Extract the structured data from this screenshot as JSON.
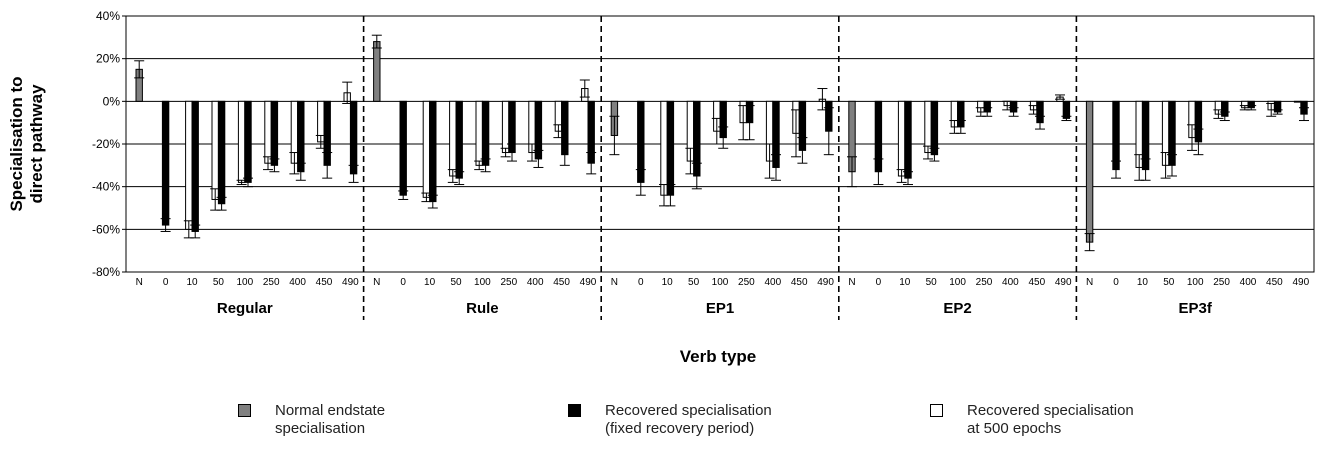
{
  "chart_data": {
    "type": "bar",
    "xlabel": "Verb type",
    "ylabel": "Specialisation to direct pathway",
    "ylim": [
      -80,
      40
    ],
    "yticks": [
      "40%",
      "20%",
      "0%",
      "-20%",
      "-40%",
      "-60%",
      "-80%"
    ],
    "ytick_values": [
      40,
      20,
      0,
      -20,
      -40,
      -60,
      -80
    ],
    "grid": true,
    "legend_position": "bottom",
    "categories": [
      "N",
      "0",
      "10",
      "50",
      "100",
      "250",
      "400",
      "450",
      "490"
    ],
    "series": [
      {
        "name": "Normal endstate specialisation",
        "color": "#808080"
      },
      {
        "name": "Recovered specialisation (fixed recovery period)",
        "color": "#000000"
      },
      {
        "name": "Recovered specialisation at 500 epochs",
        "color": "#ffffff"
      }
    ],
    "groups": [
      {
        "name": "Regular",
        "bars": [
          {
            "cat": "N",
            "series": 0,
            "value": 15,
            "err": 4
          },
          {
            "cat": "0",
            "series": 1,
            "value": -58,
            "err": 3
          },
          {
            "cat": "10",
            "series": 2,
            "value": -60,
            "err": 4
          },
          {
            "cat": "10",
            "series": 1,
            "value": -61,
            "err": 3
          },
          {
            "cat": "50",
            "series": 2,
            "value": -46,
            "err": 5
          },
          {
            "cat": "50",
            "series": 1,
            "value": -48,
            "err": 3
          },
          {
            "cat": "100",
            "series": 2,
            "value": -38,
            "err": 1
          },
          {
            "cat": "100",
            "series": 1,
            "value": -38,
            "err": 2
          },
          {
            "cat": "250",
            "series": 2,
            "value": -29,
            "err": 3
          },
          {
            "cat": "250",
            "series": 1,
            "value": -30,
            "err": 3
          },
          {
            "cat": "400",
            "series": 2,
            "value": -29,
            "err": 5
          },
          {
            "cat": "400",
            "series": 1,
            "value": -33,
            "err": 4
          },
          {
            "cat": "450",
            "series": 2,
            "value": -19,
            "err": 3
          },
          {
            "cat": "450",
            "series": 1,
            "value": -30,
            "err": 6
          },
          {
            "cat": "490",
            "series": 2,
            "value": 4,
            "err": 5
          },
          {
            "cat": "490",
            "series": 1,
            "value": -34,
            "err": 4
          }
        ]
      },
      {
        "name": "Rule",
        "bars": [
          {
            "cat": "N",
            "series": 0,
            "value": 28,
            "err": 3
          },
          {
            "cat": "0",
            "series": 1,
            "value": -44,
            "err": 2
          },
          {
            "cat": "10",
            "series": 2,
            "value": -45,
            "err": 2
          },
          {
            "cat": "10",
            "series": 1,
            "value": -47,
            "err": 3
          },
          {
            "cat": "50",
            "series": 2,
            "value": -35,
            "err": 3
          },
          {
            "cat": "50",
            "series": 1,
            "value": -36,
            "err": 3
          },
          {
            "cat": "100",
            "series": 2,
            "value": -30,
            "err": 2
          },
          {
            "cat": "100",
            "series": 1,
            "value": -30,
            "err": 3
          },
          {
            "cat": "250",
            "series": 2,
            "value": -24,
            "err": 2
          },
          {
            "cat": "250",
            "series": 1,
            "value": -24,
            "err": 4
          },
          {
            "cat": "400",
            "series": 2,
            "value": -24,
            "err": 4
          },
          {
            "cat": "400",
            "series": 1,
            "value": -27,
            "err": 4
          },
          {
            "cat": "450",
            "series": 2,
            "value": -14,
            "err": 3
          },
          {
            "cat": "450",
            "series": 1,
            "value": -25,
            "err": 5
          },
          {
            "cat": "490",
            "series": 2,
            "value": 6,
            "err": 4
          },
          {
            "cat": "490",
            "series": 1,
            "value": -29,
            "err": 5
          }
        ]
      },
      {
        "name": "EP1",
        "bars": [
          {
            "cat": "N",
            "series": 0,
            "value": -16,
            "err": 9
          },
          {
            "cat": "0",
            "series": 1,
            "value": -38,
            "err": 6
          },
          {
            "cat": "10",
            "series": 2,
            "value": -44,
            "err": 5
          },
          {
            "cat": "10",
            "series": 1,
            "value": -44,
            "err": 5
          },
          {
            "cat": "50",
            "series": 2,
            "value": -28,
            "err": 6
          },
          {
            "cat": "50",
            "series": 1,
            "value": -35,
            "err": 6
          },
          {
            "cat": "100",
            "series": 2,
            "value": -14,
            "err": 6
          },
          {
            "cat": "100",
            "series": 1,
            "value": -17,
            "err": 5
          },
          {
            "cat": "250",
            "series": 2,
            "value": -10,
            "err": 8
          },
          {
            "cat": "250",
            "series": 1,
            "value": -10,
            "err": 8
          },
          {
            "cat": "400",
            "series": 2,
            "value": -28,
            "err": 8
          },
          {
            "cat": "400",
            "series": 1,
            "value": -31,
            "err": 6
          },
          {
            "cat": "450",
            "series": 2,
            "value": -15,
            "err": 11
          },
          {
            "cat": "450",
            "series": 1,
            "value": -23,
            "err": 6
          },
          {
            "cat": "490",
            "series": 2,
            "value": 1,
            "err": 5
          },
          {
            "cat": "490",
            "series": 1,
            "value": -14,
            "err": 11
          }
        ]
      },
      {
        "name": "EP2",
        "bars": [
          {
            "cat": "N",
            "series": 0,
            "value": -33,
            "err": 7
          },
          {
            "cat": "0",
            "series": 1,
            "value": -33,
            "err": 6
          },
          {
            "cat": "10",
            "series": 2,
            "value": -35,
            "err": 3
          },
          {
            "cat": "10",
            "series": 1,
            "value": -36,
            "err": 3
          },
          {
            "cat": "50",
            "series": 2,
            "value": -24,
            "err": 3
          },
          {
            "cat": "50",
            "series": 1,
            "value": -25,
            "err": 3
          },
          {
            "cat": "100",
            "series": 2,
            "value": -12,
            "err": 3
          },
          {
            "cat": "100",
            "series": 1,
            "value": -12,
            "err": 3
          },
          {
            "cat": "250",
            "series": 2,
            "value": -5,
            "err": 2
          },
          {
            "cat": "250",
            "series": 1,
            "value": -5,
            "err": 2
          },
          {
            "cat": "400",
            "series": 2,
            "value": -2,
            "err": 2
          },
          {
            "cat": "400",
            "series": 1,
            "value": -5,
            "err": 2
          },
          {
            "cat": "450",
            "series": 2,
            "value": -4,
            "err": 2
          },
          {
            "cat": "450",
            "series": 1,
            "value": -10,
            "err": 3
          },
          {
            "cat": "490",
            "series": 2,
            "value": 2,
            "err": 1
          },
          {
            "cat": "490",
            "series": 1,
            "value": -8,
            "err": 1
          }
        ]
      },
      {
        "name": "EP3f",
        "bars": [
          {
            "cat": "N",
            "series": 0,
            "value": -66,
            "err": 4
          },
          {
            "cat": "0",
            "series": 1,
            "value": -32,
            "err": 4
          },
          {
            "cat": "10",
            "series": 2,
            "value": -31,
            "err": 6
          },
          {
            "cat": "10",
            "series": 1,
            "value": -32,
            "err": 5
          },
          {
            "cat": "50",
            "series": 2,
            "value": -30,
            "err": 6
          },
          {
            "cat": "50",
            "series": 1,
            "value": -30,
            "err": 5
          },
          {
            "cat": "100",
            "series": 2,
            "value": -17,
            "err": 6
          },
          {
            "cat": "100",
            "series": 1,
            "value": -19,
            "err": 6
          },
          {
            "cat": "250",
            "series": 2,
            "value": -6,
            "err": 2
          },
          {
            "cat": "250",
            "series": 1,
            "value": -7,
            "err": 2
          },
          {
            "cat": "400",
            "series": 2,
            "value": -3,
            "err": 1
          },
          {
            "cat": "400",
            "series": 1,
            "value": -3,
            "err": 1
          },
          {
            "cat": "450",
            "series": 2,
            "value": -4,
            "err": 3
          },
          {
            "cat": "450",
            "series": 1,
            "value": -5,
            "err": 1
          },
          {
            "cat": "490",
            "series": 2,
            "value": 0,
            "err": 0
          },
          {
            "cat": "490",
            "series": 1,
            "value": -6,
            "err": 3
          }
        ]
      }
    ]
  },
  "legend": {
    "items": [
      {
        "label": "Normal endstate specialisation",
        "color": "#808080"
      },
      {
        "label": "Recovered specialisation (fixed recovery period)",
        "color": "#000000"
      },
      {
        "label": "Recovered specialisation at 500 epochs",
        "color": "#ffffff"
      }
    ],
    "display_lines": [
      [
        "Normal endstate",
        "specialisation"
      ],
      [
        "Recovered specialisation",
        "(fixed recovery period)"
      ],
      [
        "Recovered specialisation",
        "at 500 epochs"
      ]
    ]
  },
  "ylabel_lines": [
    "Specialisation to",
    "direct pathway"
  ]
}
